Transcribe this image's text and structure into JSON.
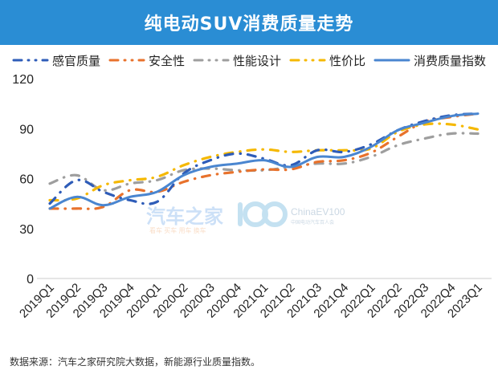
{
  "header": {
    "title": "纯电动SUV消费质量走势",
    "background": "#2a8dd4"
  },
  "legend": [
    {
      "label": "感官质量",
      "color": "#2e5cb8",
      "style": "dash-dot"
    },
    {
      "label": "安全性",
      "color": "#e8722c",
      "style": "dash-dot"
    },
    {
      "label": "性能设计",
      "color": "#9e9e9e",
      "style": "dash-dot"
    },
    {
      "label": "性价比",
      "color": "#f5b800",
      "style": "dash-dot"
    },
    {
      "label": "消费质量指数",
      "color": "#4a86d0",
      "style": "solid"
    }
  ],
  "watermark": {
    "brand": "汽车之家",
    "sub": "看车 买车 用车 换车",
    "logo_text": "ChinaEV100",
    "logo_sub": "中国电动汽车百人会"
  },
  "footer": {
    "source": "数据来源：汽车之家研究院大数据，新能源行业质量指数。"
  },
  "chart_data": {
    "type": "line",
    "title": "纯电动SUV消费质量走势",
    "xlabel": "",
    "ylabel": "",
    "ylim": [
      0,
      120
    ],
    "yticks": [
      0,
      30,
      60,
      90,
      120
    ],
    "grid": false,
    "legend_position": "top",
    "categories": [
      "2019Q1",
      "2019Q2",
      "2019Q3",
      "2019Q4",
      "2020Q1",
      "2020Q2",
      "2020Q3",
      "2020Q4",
      "2021Q1",
      "2021Q2",
      "2021Q3",
      "2021Q4",
      "2022Q1",
      "2022Q2",
      "2022Q3",
      "2022Q4",
      "2023Q1"
    ],
    "series": [
      {
        "name": "感官质量",
        "color": "#2e5cb8",
        "style": "dash-dot",
        "values": [
          45,
          59,
          52,
          47,
          46,
          63,
          71,
          75,
          72,
          68,
          77,
          76,
          80.5,
          89,
          94.5,
          98,
          99
        ]
      },
      {
        "name": "安全性",
        "color": "#e8722c",
        "style": "dash-dot",
        "values": [
          42,
          42,
          43,
          53,
          52,
          58,
          62,
          64,
          65.5,
          65.5,
          70,
          71,
          75.5,
          85,
          94,
          97,
          99
        ]
      },
      {
        "name": "性能设计",
        "color": "#9e9e9e",
        "style": "dash-dot",
        "values": [
          57,
          62,
          53,
          57,
          59,
          65,
          66,
          65,
          65,
          67,
          69,
          69,
          73,
          80,
          84,
          87,
          87
        ]
      },
      {
        "name": "性价比",
        "color": "#f5b800",
        "style": "dash-dot",
        "values": [
          47,
          48,
          56,
          59,
          61,
          68,
          73,
          76,
          77.5,
          76,
          77,
          77,
          78,
          88,
          92.5,
          92.5,
          89.5
        ]
      },
      {
        "name": "消费质量指数",
        "color": "#4a86d0",
        "style": "solid",
        "values": [
          42,
          49,
          44,
          49,
          52,
          62,
          67,
          69,
          71,
          67,
          73,
          73,
          79,
          89,
          93.5,
          97.5,
          99
        ]
      }
    ]
  }
}
